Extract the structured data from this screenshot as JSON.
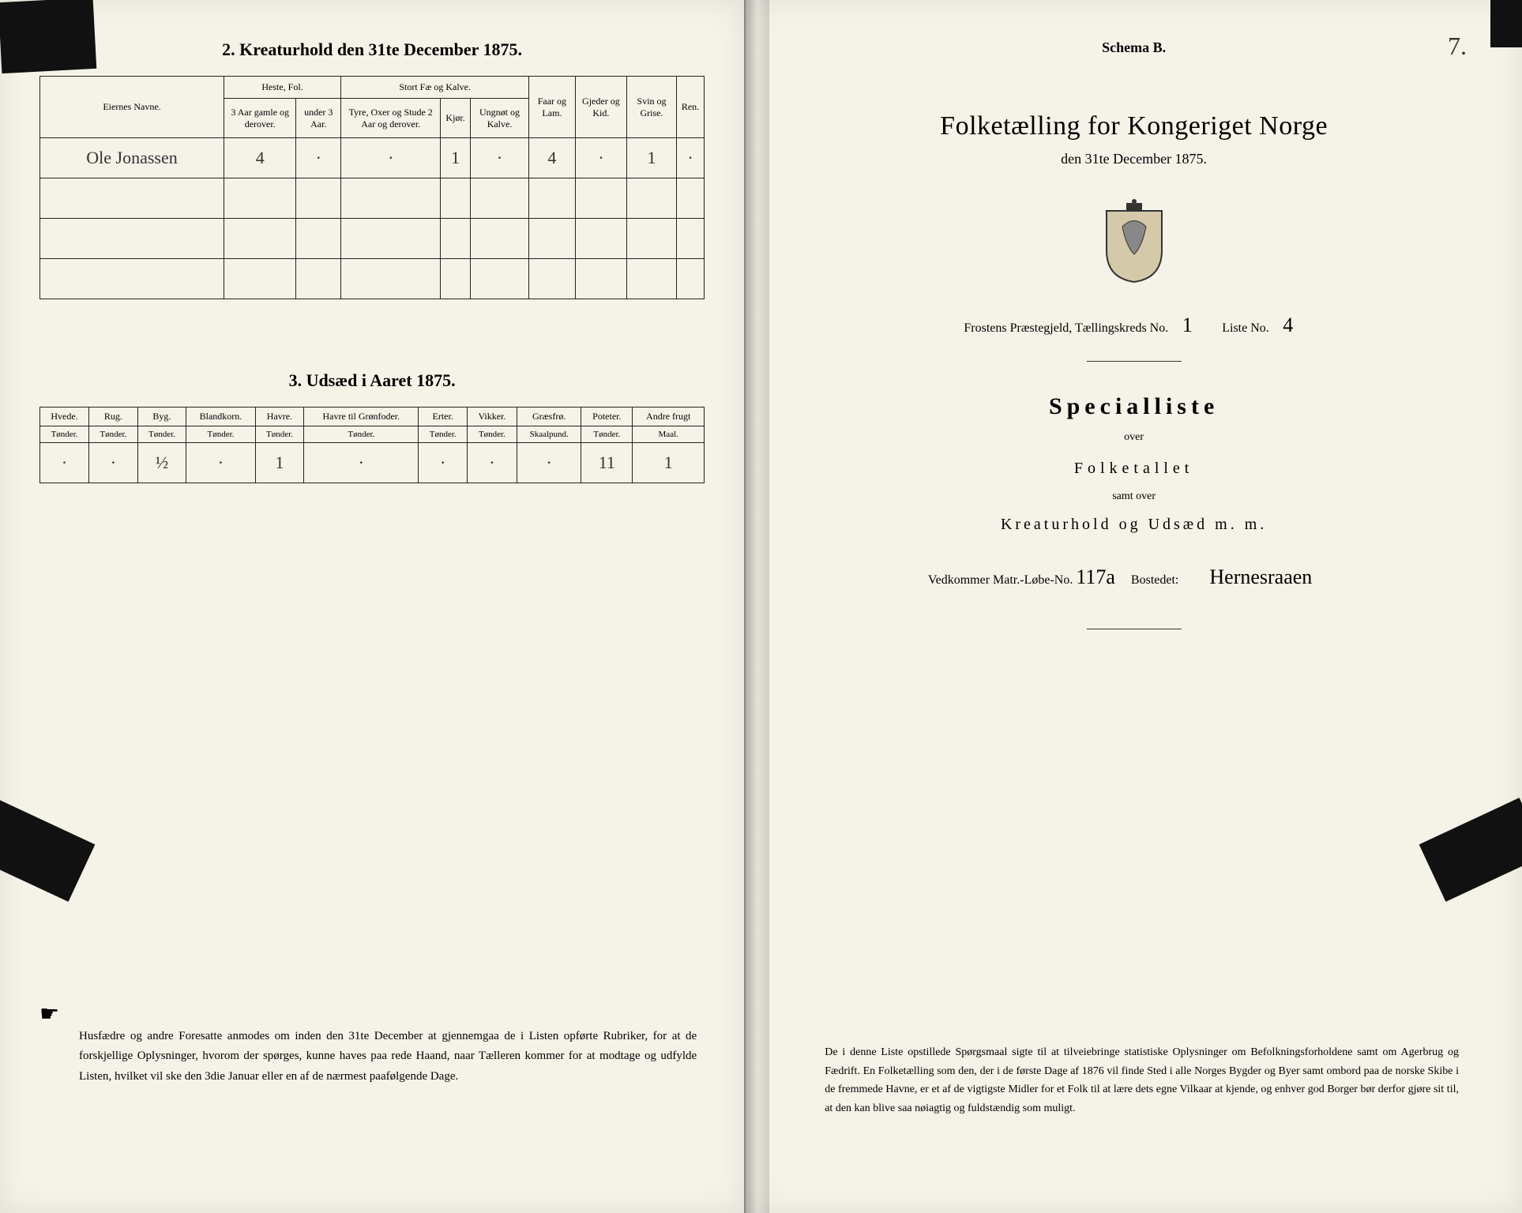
{
  "left": {
    "section2_title": "2.  Kreaturhold den 31te December 1875.",
    "table2": {
      "headers_top": {
        "name": "Eiernes Navne.",
        "heste": "Heste, Fol.",
        "stort": "Stort Fæ og Kalve.",
        "faar": "Faar og Lam.",
        "gjeder": "Gjeder og Kid.",
        "svin": "Svin og Grise.",
        "ren": "Ren."
      },
      "headers_sub": {
        "h1": "3 Aar gamle og derover.",
        "h2": "under 3 Aar.",
        "s1": "Tyre, Oxer og Stude 2 Aar og derover.",
        "s2": "Kjør.",
        "s3": "Ungnøt og Kalve."
      },
      "row": {
        "name": "Ole Jonassen",
        "v1": "4",
        "v2": "·",
        "v3": "·",
        "v4": "1",
        "v5": "·",
        "v6": "4",
        "v7": "·",
        "v8": "1",
        "v9": "·"
      }
    },
    "section3_title": "3.  Udsæd i Aaret 1875.",
    "table3": {
      "cols": [
        "Hvede.",
        "Rug.",
        "Byg.",
        "Blandkorn.",
        "Havre.",
        "Havre til Grønfoder.",
        "Erter.",
        "Vikker.",
        "Græsfrø.",
        "Poteter.",
        "Andre frugt"
      ],
      "units": [
        "Tønder.",
        "Tønder.",
        "Tønder.",
        "Tønder.",
        "Tønder.",
        "Tønder.",
        "Tønder.",
        "Tønder.",
        "Skaalpund.",
        "Tønder.",
        "Maal."
      ],
      "values": [
        "·",
        "·",
        "½",
        "·",
        "1",
        "·",
        "·",
        "·",
        "·",
        "11",
        "1"
      ]
    },
    "footer": "Husfædre og andre Foresatte anmodes om inden den 31te December at gjennemgaa de i Listen opførte Rubriker, for at de forskjellige Oplysninger, hvorom der spørges, kunne haves paa rede Haand, naar Tælleren kommer for at modtage og udfylde Listen, hvilket vil ske den 3die Januar eller en af de nærmest paafølgende Dage."
  },
  "right": {
    "schema": "Schema B.",
    "page_no": "7.",
    "title": "Folketælling for Kongeriget Norge",
    "date": "den 31te December 1875.",
    "line_prefix": "Frostens Præstegjeld,  Tællingskreds No.",
    "kreds_no": "1",
    "liste_label": "Liste No.",
    "liste_no": "4",
    "special": "Specialliste",
    "over": "over",
    "folketallet": "Folketallet",
    "samt": "samt over",
    "kreatur": "Kreaturhold og Udsæd m. m.",
    "vedkommer_pre": "Vedkommer Matr.-Løbe-No.",
    "matr_no": "117a",
    "bostedet_label": "Bostedet:",
    "bostedet": "Hernesraaen",
    "footer": "De i denne Liste opstillede Spørgsmaal sigte til at tilveiebringe statistiske Oplysninger om Befolkningsforholdene samt om Agerbrug og Fædrift.  En Folketælling som den, der i de første Dage af 1876 vil finde Sted i alle Norges Bygder og Byer samt ombord paa de norske Skibe i de fremmede Havne, er et af de vigtigste Midler for et Folk til at lære dets egne Vilkaar at kjende, og enhver god Borger bør derfor gjøre sit til, at den kan blive saa nøiagtig og fuldstændig som muligt."
  },
  "colors": {
    "paper": "#f5f2e8",
    "ink": "#222222"
  }
}
